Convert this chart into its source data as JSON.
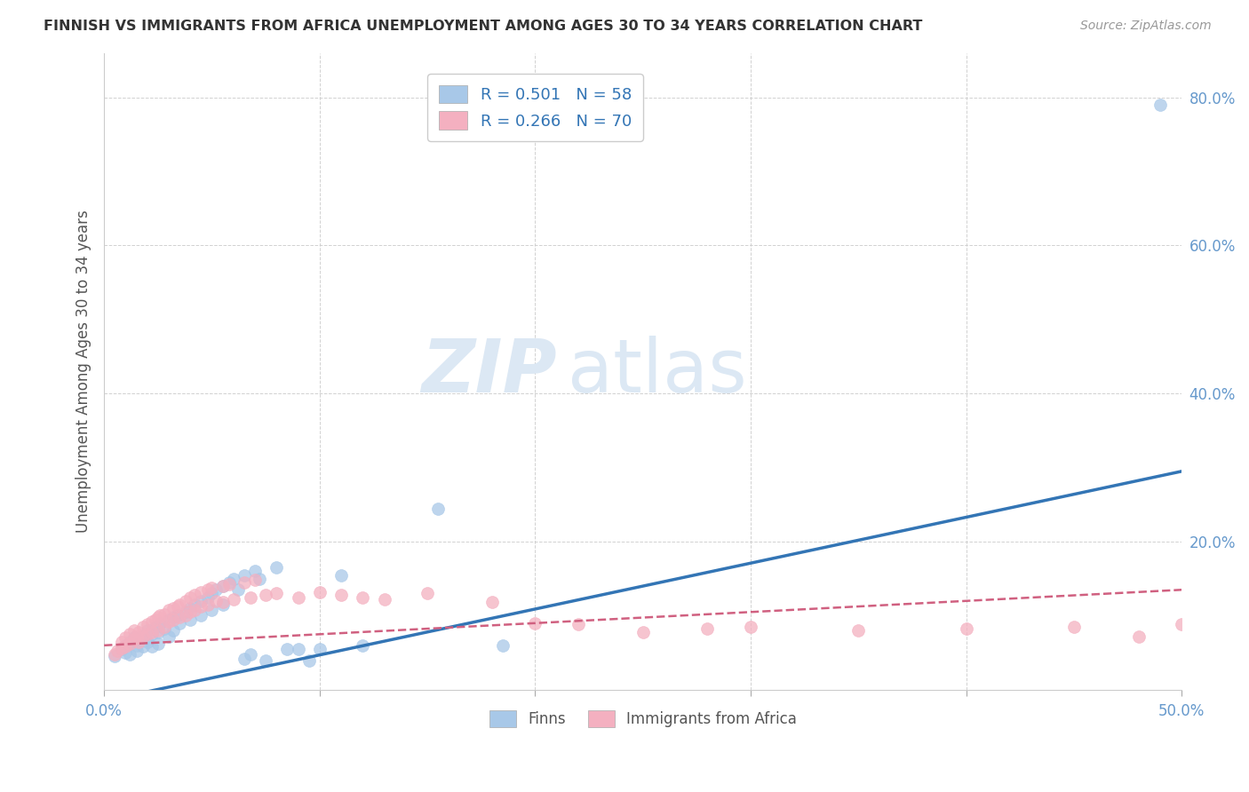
{
  "title": "FINNISH VS IMMIGRANTS FROM AFRICA UNEMPLOYMENT AMONG AGES 30 TO 34 YEARS CORRELATION CHART",
  "source": "Source: ZipAtlas.com",
  "ylabel": "Unemployment Among Ages 30 to 34 years",
  "xlim": [
    0,
    0.5
  ],
  "ylim": [
    0,
    0.86
  ],
  "yticks": [
    0.0,
    0.2,
    0.4,
    0.6,
    0.8
  ],
  "ytick_labels": [
    "",
    "20.0%",
    "40.0%",
    "60.0%",
    "80.0%"
  ],
  "xtick_positions": [
    0.0,
    0.5
  ],
  "xtick_labels": [
    "0.0%",
    "50.0%"
  ],
  "legend_entries": [
    {
      "label": "R = 0.501   N = 58",
      "facecolor": "#a8c8e8"
    },
    {
      "label": "R = 0.266   N = 70",
      "facecolor": "#f4b0c0"
    }
  ],
  "bottom_legend": [
    {
      "label": "Finns",
      "facecolor": "#a8c8e8"
    },
    {
      "label": "Immigrants from Africa",
      "facecolor": "#f4b0c0"
    }
  ],
  "finns_scatter": [
    [
      0.005,
      0.045
    ],
    [
      0.008,
      0.055
    ],
    [
      0.01,
      0.06
    ],
    [
      0.01,
      0.05
    ],
    [
      0.012,
      0.065
    ],
    [
      0.012,
      0.048
    ],
    [
      0.014,
      0.07
    ],
    [
      0.015,
      0.06
    ],
    [
      0.015,
      0.052
    ],
    [
      0.016,
      0.068
    ],
    [
      0.018,
      0.072
    ],
    [
      0.018,
      0.058
    ],
    [
      0.02,
      0.08
    ],
    [
      0.02,
      0.065
    ],
    [
      0.022,
      0.075
    ],
    [
      0.022,
      0.058
    ],
    [
      0.024,
      0.085
    ],
    [
      0.025,
      0.078
    ],
    [
      0.025,
      0.062
    ],
    [
      0.026,
      0.09
    ],
    [
      0.028,
      0.082
    ],
    [
      0.03,
      0.095
    ],
    [
      0.03,
      0.072
    ],
    [
      0.032,
      0.098
    ],
    [
      0.032,
      0.08
    ],
    [
      0.034,
      0.1
    ],
    [
      0.035,
      0.09
    ],
    [
      0.038,
      0.105
    ],
    [
      0.04,
      0.11
    ],
    [
      0.04,
      0.095
    ],
    [
      0.042,
      0.115
    ],
    [
      0.045,
      0.12
    ],
    [
      0.045,
      0.1
    ],
    [
      0.048,
      0.125
    ],
    [
      0.05,
      0.13
    ],
    [
      0.05,
      0.108
    ],
    [
      0.052,
      0.135
    ],
    [
      0.055,
      0.14
    ],
    [
      0.055,
      0.115
    ],
    [
      0.058,
      0.145
    ],
    [
      0.06,
      0.15
    ],
    [
      0.062,
      0.135
    ],
    [
      0.065,
      0.155
    ],
    [
      0.065,
      0.042
    ],
    [
      0.068,
      0.048
    ],
    [
      0.07,
      0.16
    ],
    [
      0.072,
      0.15
    ],
    [
      0.075,
      0.04
    ],
    [
      0.08,
      0.165
    ],
    [
      0.085,
      0.055
    ],
    [
      0.09,
      0.055
    ],
    [
      0.095,
      0.04
    ],
    [
      0.1,
      0.055
    ],
    [
      0.11,
      0.155
    ],
    [
      0.12,
      0.06
    ],
    [
      0.155,
      0.245
    ],
    [
      0.185,
      0.06
    ],
    [
      0.49,
      0.79
    ]
  ],
  "africa_scatter": [
    [
      0.005,
      0.048
    ],
    [
      0.006,
      0.052
    ],
    [
      0.008,
      0.056
    ],
    [
      0.008,
      0.065
    ],
    [
      0.01,
      0.058
    ],
    [
      0.01,
      0.07
    ],
    [
      0.012,
      0.062
    ],
    [
      0.012,
      0.075
    ],
    [
      0.014,
      0.068
    ],
    [
      0.014,
      0.08
    ],
    [
      0.015,
      0.072
    ],
    [
      0.016,
      0.078
    ],
    [
      0.016,
      0.065
    ],
    [
      0.018,
      0.085
    ],
    [
      0.018,
      0.072
    ],
    [
      0.02,
      0.088
    ],
    [
      0.02,
      0.075
    ],
    [
      0.022,
      0.092
    ],
    [
      0.022,
      0.078
    ],
    [
      0.024,
      0.095
    ],
    [
      0.025,
      0.098
    ],
    [
      0.025,
      0.08
    ],
    [
      0.026,
      0.1
    ],
    [
      0.028,
      0.102
    ],
    [
      0.028,
      0.085
    ],
    [
      0.03,
      0.108
    ],
    [
      0.03,
      0.092
    ],
    [
      0.032,
      0.11
    ],
    [
      0.032,
      0.095
    ],
    [
      0.034,
      0.112
    ],
    [
      0.035,
      0.115
    ],
    [
      0.035,
      0.098
    ],
    [
      0.038,
      0.12
    ],
    [
      0.038,
      0.1
    ],
    [
      0.04,
      0.125
    ],
    [
      0.04,
      0.105
    ],
    [
      0.042,
      0.128
    ],
    [
      0.042,
      0.108
    ],
    [
      0.045,
      0.132
    ],
    [
      0.045,
      0.112
    ],
    [
      0.048,
      0.135
    ],
    [
      0.048,
      0.115
    ],
    [
      0.05,
      0.138
    ],
    [
      0.052,
      0.12
    ],
    [
      0.055,
      0.14
    ],
    [
      0.055,
      0.118
    ],
    [
      0.058,
      0.142
    ],
    [
      0.06,
      0.122
    ],
    [
      0.065,
      0.145
    ],
    [
      0.068,
      0.125
    ],
    [
      0.07,
      0.148
    ],
    [
      0.075,
      0.128
    ],
    [
      0.08,
      0.13
    ],
    [
      0.09,
      0.125
    ],
    [
      0.1,
      0.132
    ],
    [
      0.11,
      0.128
    ],
    [
      0.12,
      0.125
    ],
    [
      0.13,
      0.122
    ],
    [
      0.15,
      0.13
    ],
    [
      0.18,
      0.118
    ],
    [
      0.2,
      0.09
    ],
    [
      0.22,
      0.088
    ],
    [
      0.25,
      0.078
    ],
    [
      0.28,
      0.082
    ],
    [
      0.3,
      0.085
    ],
    [
      0.35,
      0.08
    ],
    [
      0.4,
      0.082
    ],
    [
      0.45,
      0.085
    ],
    [
      0.48,
      0.072
    ],
    [
      0.5,
      0.088
    ]
  ],
  "finns_line": {
    "x0": 0.0,
    "y0": -0.015,
    "x1": 0.5,
    "y1": 0.295,
    "color": "#3375b5",
    "linestyle": "solid",
    "linewidth": 2.5
  },
  "africa_line": {
    "x0": 0.0,
    "y0": 0.06,
    "x1": 0.5,
    "y1": 0.135,
    "color": "#d06080",
    "linestyle": "dashed",
    "linewidth": 1.8
  },
  "scatter_size": 100,
  "finns_color": "#a8c8e8",
  "africa_color": "#f4b0c0",
  "watermark_zip": "ZIP",
  "watermark_atlas": "atlas",
  "watermark_color": "#dce8f4",
  "grid_color": "#cccccc",
  "title_color": "#333333",
  "axis_tick_color": "#6699cc",
  "ylabel_color": "#555555",
  "background_color": "#ffffff",
  "legend_text_color": "#3375b5"
}
